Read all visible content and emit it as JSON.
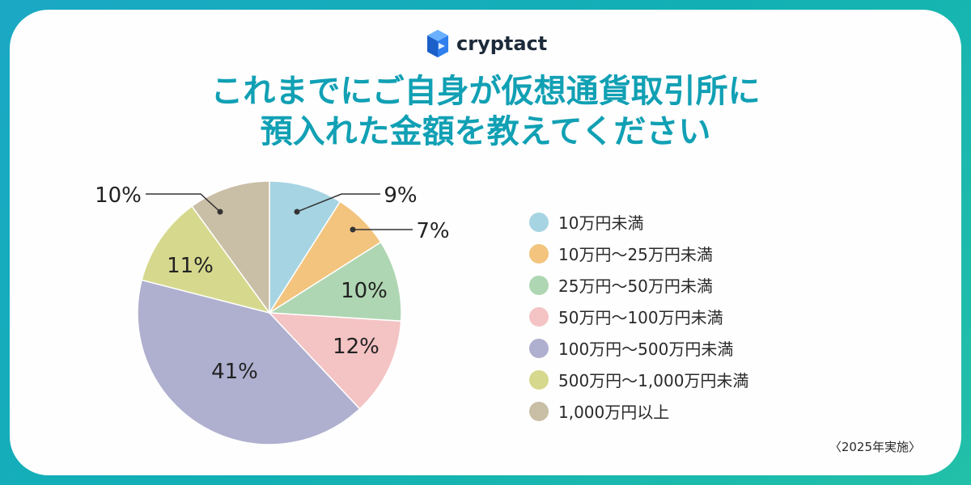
{
  "brand": {
    "name": "cryptact"
  },
  "title_lines": [
    "これまでにご自身が仮想通貨取引所に",
    "預入れた金額を教えてください"
  ],
  "note": "〈2025年実施〉",
  "chart_data": {
    "type": "pie",
    "title": "これまでにご自身が仮想通貨取引所に預入れた金額を教えてください",
    "categories": [
      "10万円未満",
      "10万円〜25万円未満",
      "25万円〜50万円未満",
      "50万円〜100万円未満",
      "100万円〜500万円未満",
      "500万円〜1,000万円未満",
      "1,000万円以上"
    ],
    "values": [
      9,
      7,
      10,
      12,
      41,
      11,
      10
    ],
    "labels": [
      "9%",
      "7%",
      "10%",
      "12%",
      "41%",
      "11%",
      "10%"
    ],
    "colors": [
      "#a6d4e2",
      "#f2c47e",
      "#aed6b2",
      "#f4c3c4",
      "#afb0cf",
      "#d6d98d",
      "#c9bea6"
    ],
    "legend_position": "right"
  }
}
